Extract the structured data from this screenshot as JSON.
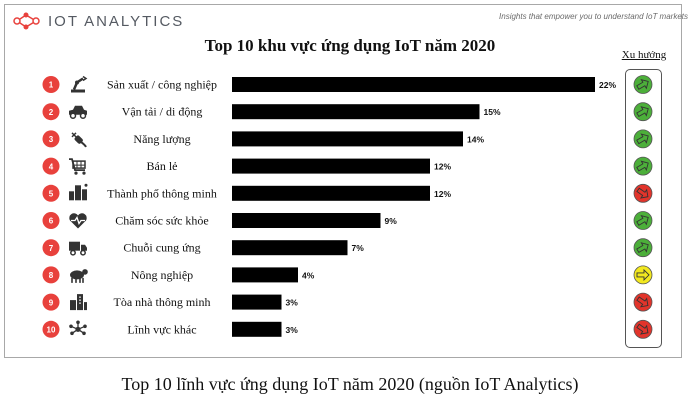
{
  "brand": {
    "name": "IOT ANALYTICS",
    "tagline": "Insights that empower you to understand IoT markets"
  },
  "chart_data": {
    "type": "bar",
    "orientation": "horizontal",
    "title": "Top 10 khu vực ứng dụng IoT năm 2020",
    "categories": [
      "Sản xuất / công nghiệp",
      "Vận tải / di động",
      "Năng lượng",
      "Bán lẻ",
      "Thành phố thông minh",
      "Chăm sóc sức khỏe",
      "Chuỗi cung ứng",
      "Nông nghiệp",
      "Tòa nhà thông minh",
      "Lĩnh vực khác"
    ],
    "ranks": [
      "1",
      "2",
      "3",
      "4",
      "5",
      "6",
      "7",
      "8",
      "9",
      "10"
    ],
    "values": [
      22,
      15,
      14,
      12,
      12,
      9,
      7,
      4,
      3,
      3
    ],
    "value_labels": [
      "22%",
      "15%",
      "14%",
      "12%",
      "12%",
      "9%",
      "7%",
      "4%",
      "3%",
      "3%"
    ],
    "xlim": [
      0,
      22
    ],
    "trend_header": "Xu hướng",
    "trends": [
      "up",
      "up",
      "up",
      "up",
      "down",
      "up",
      "up",
      "flat",
      "down",
      "down"
    ],
    "icons": [
      "robot-arm-icon",
      "car-icon",
      "plug-icon",
      "cart-icon",
      "city-icon",
      "heartbeat-icon",
      "truck-icon",
      "cow-icon",
      "building-icon",
      "network-icon"
    ],
    "colors": {
      "bar": "#000000",
      "rank_circle": "#e8413c",
      "trend_up": "#4caf3a",
      "trend_flat": "#f2e81f",
      "trend_down": "#e2342b"
    }
  },
  "caption": "Top 10 lĩnh vực ứng dụng IoT năm 2020 (nguồn IoT Analytics)"
}
